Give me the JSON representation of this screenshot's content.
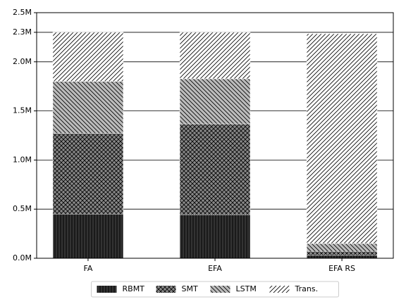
{
  "chart_data": {
    "type": "stacked-bar",
    "categories": [
      "FA",
      "EFA",
      "EFA RS"
    ],
    "series": [
      {
        "name": "RBMT",
        "color": "#333333",
        "hatch": "|||",
        "values": [
          450000,
          444000,
          30000
        ]
      },
      {
        "name": "SMT",
        "color": "#888888",
        "hatch": "xxx",
        "values": [
          820000,
          924000,
          40000
        ]
      },
      {
        "name": "LSTM",
        "color": "#bbbbbb",
        "hatch": "\\\\\\",
        "values": [
          530000,
          459000,
          80000
        ]
      },
      {
        "name": "Trans.",
        "color": "#ffffff",
        "hatch": "///",
        "values": [
          500000,
          473000,
          2135000
        ]
      }
    ],
    "ylim": [
      0,
      2500000
    ],
    "yticks": [
      {
        "value": 0,
        "label": "0.0M"
      },
      {
        "value": 500000,
        "label": "0.5M"
      },
      {
        "value": 1000000,
        "label": "1.0M"
      },
      {
        "value": 1500000,
        "label": "1.5M"
      },
      {
        "value": 2000000,
        "label": "2.0M"
      },
      {
        "value": 2300000,
        "label": "2.3M"
      },
      {
        "value": 2500000,
        "label": "2.5M"
      }
    ],
    "grid": true,
    "legend": "bottom"
  }
}
